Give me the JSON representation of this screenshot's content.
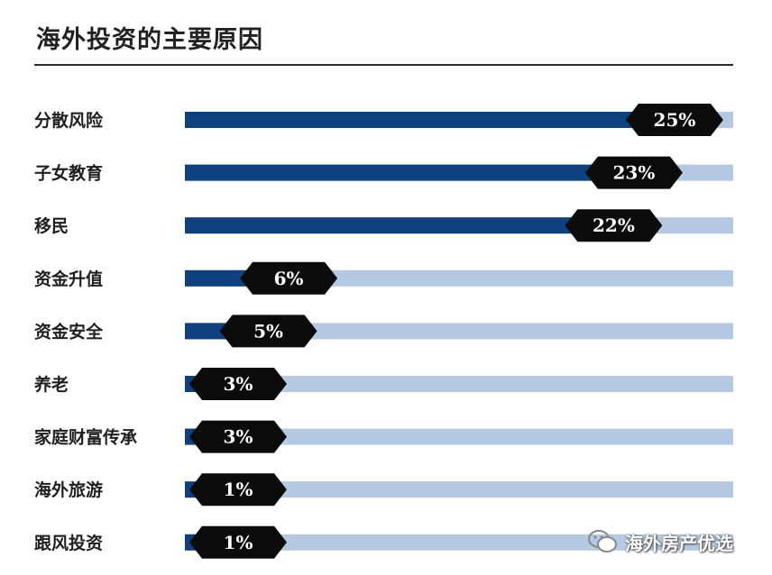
{
  "title": "海外投资的主要原因",
  "watermark": {
    "text": "海外房产优选",
    "icon": "wechat-icon"
  },
  "colors": {
    "bar_fill": "#0e3f7e",
    "bar_track": "#b6c9e2",
    "label_bg": "#0b0b0b"
  },
  "chart_data": {
    "type": "bar",
    "orientation": "horizontal",
    "title": "海外投资的主要原因",
    "xlim": [
      0,
      27
    ],
    "categories": [
      "分散风险",
      "子女教育",
      "移民",
      "资金升值",
      "资金安全",
      "养老",
      "家庭财富传承",
      "海外旅游",
      "跟风投资"
    ],
    "values": [
      25,
      23,
      22,
      6,
      5,
      3,
      3,
      1,
      1
    ],
    "value_labels": [
      "25%",
      "23%",
      "22%",
      "6%",
      "5%",
      "3%",
      "3%",
      "1%",
      "1%"
    ]
  }
}
